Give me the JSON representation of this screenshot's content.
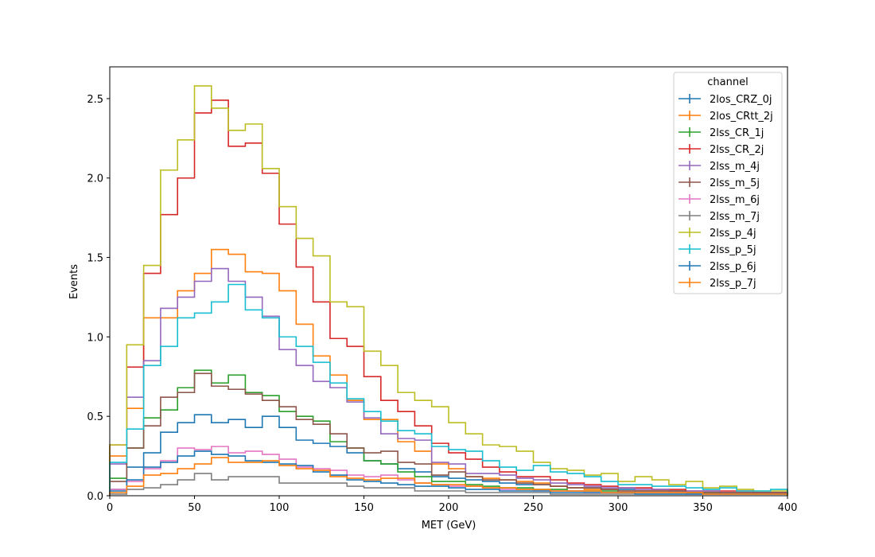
{
  "chart_data": {
    "type": "histogram-step",
    "title": "",
    "xlabel": "MET (GeV)",
    "ylabel": "Events",
    "xlim": [
      0,
      400
    ],
    "ylim": [
      0,
      2.7
    ],
    "xticks": [
      "0",
      "50",
      "100",
      "150",
      "200",
      "250",
      "300",
      "350",
      "400"
    ],
    "yticks": [
      "0.0",
      "0.5",
      "1.0",
      "1.5",
      "2.0",
      "2.5"
    ],
    "grid": false,
    "legend": {
      "title": "channel",
      "placement": "top-right"
    },
    "bin_edges": [
      0,
      10,
      20,
      30,
      40,
      50,
      60,
      70,
      80,
      90,
      100,
      110,
      120,
      130,
      140,
      150,
      160,
      170,
      180,
      190,
      200,
      210,
      220,
      230,
      240,
      250,
      260,
      270,
      280,
      290,
      300,
      310,
      320,
      330,
      340,
      350,
      360,
      370,
      380,
      390,
      400
    ],
    "series": [
      {
        "name": "2los_CRZ_0j",
        "color": "#1f77b4",
        "values": [
          0.04,
          0.18,
          0.27,
          0.4,
          0.46,
          0.51,
          0.46,
          0.48,
          0.43,
          0.5,
          0.43,
          0.35,
          0.33,
          0.31,
          0.27,
          0.22,
          0.2,
          0.17,
          0.15,
          0.12,
          0.11,
          0.1,
          0.09,
          0.08,
          0.07,
          0.07,
          0.06,
          0.05,
          0.05,
          0.04,
          0.04,
          0.03,
          0.03,
          0.03,
          0.02,
          0.02,
          0.02,
          0.02,
          0.02,
          0.02
        ]
      },
      {
        "name": "2los_CRtt_2j",
        "color": "#ff7f0e",
        "values": [
          0.25,
          0.55,
          1.12,
          1.12,
          1.29,
          1.4,
          1.55,
          1.52,
          1.41,
          1.4,
          1.29,
          1.08,
          0.88,
          0.76,
          0.6,
          0.48,
          0.48,
          0.34,
          0.28,
          0.2,
          0.17,
          0.12,
          0.11,
          0.1,
          0.09,
          0.08,
          0.06,
          0.05,
          0.04,
          0.04,
          0.03,
          0.03,
          0.03,
          0.02,
          0.02,
          0.02,
          0.02,
          0.02,
          0.02,
          0.02
        ]
      },
      {
        "name": "2lss_CR_1j",
        "color": "#2ca02c",
        "values": [
          0.11,
          0.3,
          0.49,
          0.54,
          0.68,
          0.79,
          0.71,
          0.76,
          0.65,
          0.63,
          0.53,
          0.5,
          0.47,
          0.34,
          0.3,
          0.22,
          0.2,
          0.15,
          0.12,
          0.09,
          0.09,
          0.07,
          0.06,
          0.05,
          0.05,
          0.04,
          0.04,
          0.03,
          0.03,
          0.03,
          0.02,
          0.02,
          0.02,
          0.02,
          0.02,
          0.02,
          0.01,
          0.01,
          0.01,
          0.01
        ]
      },
      {
        "name": "2lss_CR_2j",
        "color": "#d62728",
        "values": [
          0.32,
          0.81,
          1.4,
          1.77,
          2.0,
          2.41,
          2.49,
          2.2,
          2.22,
          2.03,
          1.71,
          1.44,
          1.22,
          0.99,
          0.94,
          0.75,
          0.6,
          0.53,
          0.44,
          0.33,
          0.27,
          0.23,
          0.18,
          0.15,
          0.12,
          0.12,
          0.1,
          0.08,
          0.07,
          0.06,
          0.05,
          0.05,
          0.04,
          0.04,
          0.03,
          0.03,
          0.03,
          0.03,
          0.02,
          0.02
        ]
      },
      {
        "name": "2lss_m_4j",
        "color": "#9467bd",
        "values": [
          0.2,
          0.62,
          0.85,
          1.18,
          1.25,
          1.35,
          1.43,
          1.35,
          1.25,
          1.13,
          0.92,
          0.82,
          0.72,
          0.68,
          0.59,
          0.49,
          0.39,
          0.36,
          0.35,
          0.21,
          0.2,
          0.14,
          0.14,
          0.13,
          0.11,
          0.1,
          0.08,
          0.07,
          0.06,
          0.05,
          0.05,
          0.04,
          0.04,
          0.03,
          0.03,
          0.03,
          0.02,
          0.02,
          0.02,
          0.02
        ]
      },
      {
        "name": "2lss_m_5j",
        "color": "#8c564b",
        "values": [
          0.09,
          0.3,
          0.44,
          0.62,
          0.65,
          0.77,
          0.69,
          0.67,
          0.64,
          0.6,
          0.56,
          0.48,
          0.45,
          0.39,
          0.3,
          0.27,
          0.28,
          0.21,
          0.2,
          0.13,
          0.15,
          0.12,
          0.1,
          0.1,
          0.08,
          0.07,
          0.06,
          0.05,
          0.05,
          0.04,
          0.03,
          0.03,
          0.03,
          0.03,
          0.02,
          0.02,
          0.02,
          0.02,
          0.02,
          0.02
        ]
      },
      {
        "name": "2lss_m_6j",
        "color": "#e377c2",
        "values": [
          0.04,
          0.09,
          0.17,
          0.22,
          0.3,
          0.29,
          0.31,
          0.27,
          0.28,
          0.26,
          0.23,
          0.18,
          0.17,
          0.16,
          0.13,
          0.12,
          0.13,
          0.1,
          0.08,
          0.07,
          0.06,
          0.06,
          0.05,
          0.04,
          0.04,
          0.03,
          0.03,
          0.03,
          0.02,
          0.02,
          0.02,
          0.02,
          0.02,
          0.02,
          0.01,
          0.01,
          0.01,
          0.01,
          0.01,
          0.01
        ]
      },
      {
        "name": "2lss_m_7j",
        "color": "#7f7f7f",
        "values": [
          0.01,
          0.04,
          0.05,
          0.07,
          0.1,
          0.14,
          0.1,
          0.12,
          0.12,
          0.12,
          0.08,
          0.08,
          0.08,
          0.08,
          0.06,
          0.05,
          0.05,
          0.05,
          0.03,
          0.03,
          0.03,
          0.02,
          0.02,
          0.02,
          0.02,
          0.02,
          0.01,
          0.01,
          0.01,
          0.01,
          0.01,
          0.01,
          0.01,
          0.01,
          0.01,
          0.01,
          0.01,
          0.01,
          0.01,
          0.01
        ]
      },
      {
        "name": "2lss_p_4j",
        "color": "#bcbd22",
        "values": [
          0.32,
          0.95,
          1.45,
          2.05,
          2.24,
          2.58,
          2.44,
          2.3,
          2.34,
          2.06,
          1.82,
          1.62,
          1.51,
          1.22,
          1.19,
          0.91,
          0.82,
          0.65,
          0.6,
          0.56,
          0.46,
          0.39,
          0.32,
          0.31,
          0.28,
          0.21,
          0.17,
          0.16,
          0.13,
          0.14,
          0.09,
          0.12,
          0.1,
          0.07,
          0.09,
          0.05,
          0.06,
          0.04,
          0.03,
          0.03
        ]
      },
      {
        "name": "2lss_p_5j",
        "color": "#17becf",
        "values": [
          0.21,
          0.42,
          0.82,
          0.94,
          1.12,
          1.15,
          1.22,
          1.33,
          1.17,
          1.12,
          1.0,
          0.94,
          0.84,
          0.71,
          0.61,
          0.53,
          0.47,
          0.41,
          0.39,
          0.31,
          0.29,
          0.28,
          0.22,
          0.18,
          0.16,
          0.19,
          0.15,
          0.14,
          0.12,
          0.09,
          0.07,
          0.07,
          0.06,
          0.06,
          0.05,
          0.04,
          0.05,
          0.03,
          0.03,
          0.04
        ]
      },
      {
        "name": "2lss_p_6j",
        "color": "#1f77b4",
        "values": [
          0.03,
          0.1,
          0.18,
          0.21,
          0.25,
          0.28,
          0.26,
          0.25,
          0.22,
          0.21,
          0.2,
          0.19,
          0.15,
          0.13,
          0.1,
          0.09,
          0.08,
          0.07,
          0.06,
          0.06,
          0.05,
          0.04,
          0.04,
          0.03,
          0.03,
          0.03,
          0.02,
          0.02,
          0.02,
          0.02,
          0.02,
          0.01,
          0.01,
          0.01,
          0.01,
          0.01,
          0.01,
          0.01,
          0.01,
          0.01
        ]
      },
      {
        "name": "2lss_p_7j",
        "color": "#ff7f0e",
        "values": [
          0.02,
          0.06,
          0.13,
          0.14,
          0.17,
          0.2,
          0.24,
          0.21,
          0.21,
          0.22,
          0.19,
          0.17,
          0.16,
          0.12,
          0.11,
          0.1,
          0.11,
          0.11,
          0.08,
          0.07,
          0.07,
          0.06,
          0.05,
          0.05,
          0.04,
          0.04,
          0.03,
          0.03,
          0.03,
          0.02,
          0.02,
          0.02,
          0.02,
          0.02,
          0.02,
          0.01,
          0.01,
          0.01,
          0.01,
          0.01
        ]
      }
    ]
  }
}
